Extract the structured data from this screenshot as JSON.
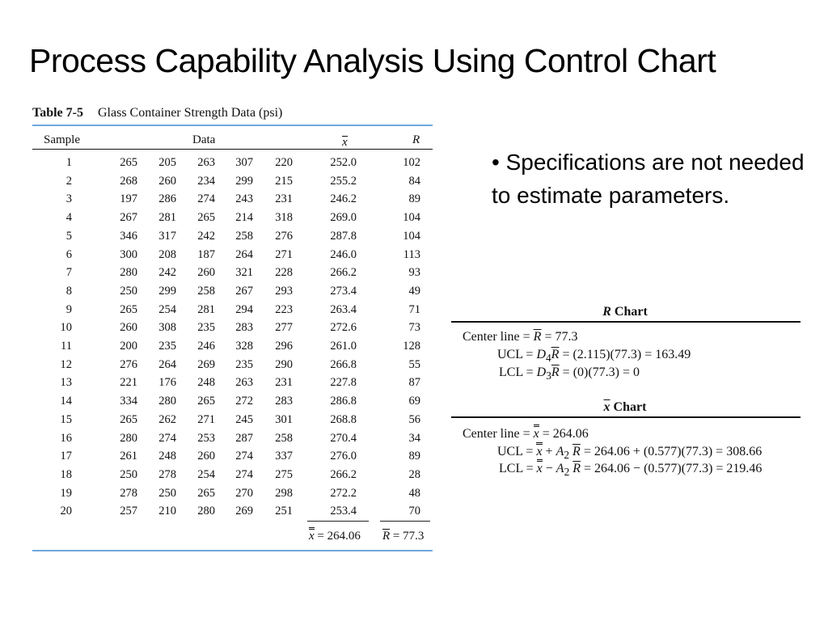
{
  "title": "Process Capability Analysis Using Control Chart",
  "table": {
    "number": "Table 7-5",
    "caption": "Glass Container Strength Data (psi)",
    "headers": {
      "sample": "Sample",
      "data": "Data",
      "xbar": "x",
      "r": "R"
    },
    "rows": [
      [
        "1",
        "265",
        "205",
        "263",
        "307",
        "220",
        "252.0",
        "102"
      ],
      [
        "2",
        "268",
        "260",
        "234",
        "299",
        "215",
        "255.2",
        "84"
      ],
      [
        "3",
        "197",
        "286",
        "274",
        "243",
        "231",
        "246.2",
        "89"
      ],
      [
        "4",
        "267",
        "281",
        "265",
        "214",
        "318",
        "269.0",
        "104"
      ],
      [
        "5",
        "346",
        "317",
        "242",
        "258",
        "276",
        "287.8",
        "104"
      ],
      [
        "6",
        "300",
        "208",
        "187",
        "264",
        "271",
        "246.0",
        "113"
      ],
      [
        "7",
        "280",
        "242",
        "260",
        "321",
        "228",
        "266.2",
        "93"
      ],
      [
        "8",
        "250",
        "299",
        "258",
        "267",
        "293",
        "273.4",
        "49"
      ],
      [
        "9",
        "265",
        "254",
        "281",
        "294",
        "223",
        "263.4",
        "71"
      ],
      [
        "10",
        "260",
        "308",
        "235",
        "283",
        "277",
        "272.6",
        "73"
      ],
      [
        "11",
        "200",
        "235",
        "246",
        "328",
        "296",
        "261.0",
        "128"
      ],
      [
        "12",
        "276",
        "264",
        "269",
        "235",
        "290",
        "266.8",
        "55"
      ],
      [
        "13",
        "221",
        "176",
        "248",
        "263",
        "231",
        "227.8",
        "87"
      ],
      [
        "14",
        "334",
        "280",
        "265",
        "272",
        "283",
        "286.8",
        "69"
      ],
      [
        "15",
        "265",
        "262",
        "271",
        "245",
        "301",
        "268.8",
        "56"
      ],
      [
        "16",
        "280",
        "274",
        "253",
        "287",
        "258",
        "270.4",
        "34"
      ],
      [
        "17",
        "261",
        "248",
        "260",
        "274",
        "337",
        "276.0",
        "89"
      ],
      [
        "18",
        "250",
        "278",
        "254",
        "274",
        "275",
        "266.2",
        "28"
      ],
      [
        "19",
        "278",
        "250",
        "265",
        "270",
        "298",
        "272.2",
        "48"
      ],
      [
        "20",
        "257",
        "210",
        "280",
        "269",
        "251",
        "253.4",
        "70"
      ]
    ],
    "summary": {
      "xbarbar": "= 264.06",
      "rbar": "= 77.3"
    }
  },
  "bullet": "Specifications are not needed to estimate parameters.",
  "r_chart": {
    "title_sym": "R",
    "title_word": "Chart",
    "center_label": "Center line =",
    "center_val": "= 77.3",
    "ucl_label": "UCL =",
    "ucl_val": "= (2.115)(77.3) = 163.49",
    "lcl_label": "LCL =",
    "lcl_val": "= (0)(77.3) = 0"
  },
  "x_chart": {
    "title_sym": "x",
    "title_word": "Chart",
    "center_label": "Center line =",
    "center_val": "= 264.06",
    "ucl_label": "UCL =",
    "ucl_val": "= 264.06 + (0.577)(77.3) = 308.66",
    "lcl_label": "LCL =",
    "lcl_val": "= 264.06 − (0.577)(77.3) = 219.46"
  },
  "colors": {
    "rule": "#6fa8dc"
  }
}
